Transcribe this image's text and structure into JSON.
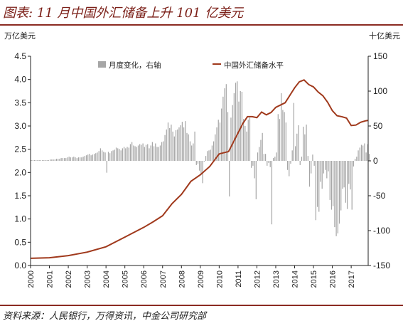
{
  "title": "图表: 11 月中国外汇储备上升 101 亿美元",
  "source": "资料来源：人民银行，万得资讯，中金公司研究部",
  "colors": {
    "accent": "#8b2b22",
    "bar": "#a6a6a6",
    "line": "#a0391c"
  },
  "chart_data": {
    "type": "bar+line",
    "left_axis": {
      "unit": "万亿美元",
      "min": 0.0,
      "max": 4.5,
      "ticks": [
        "0.0",
        "0.5",
        "1.0",
        "1.5",
        "2.0",
        "2.5",
        "3.0",
        "3.5",
        "4.0",
        "4.5"
      ]
    },
    "right_axis": {
      "unit": "十亿美元",
      "min": -150,
      "max": 150,
      "ticks": [
        "-150",
        "-100",
        "-50",
        "0",
        "50",
        "100",
        "150"
      ]
    },
    "x_ticks": [
      "2000",
      "2001",
      "2002",
      "2003",
      "2004",
      "2005",
      "2006",
      "2007",
      "2008",
      "2009",
      "2010",
      "2011",
      "2012",
      "2013",
      "2014",
      "2015",
      "2016",
      "2017"
    ],
    "legend": [
      "月度变化，右轴",
      "中国外汇储备水平"
    ],
    "series": [
      {
        "name": "中国外汇储备水平",
        "axis": "left",
        "kind": "line",
        "points": [
          [
            2000.0,
            0.155
          ],
          [
            2001.0,
            0.166
          ],
          [
            2002.0,
            0.213
          ],
          [
            2003.0,
            0.288
          ],
          [
            2004.0,
            0.403
          ],
          [
            2005.0,
            0.61
          ],
          [
            2006.0,
            0.82
          ],
          [
            2006.5,
            0.94
          ],
          [
            2007.0,
            1.07
          ],
          [
            2007.5,
            1.33
          ],
          [
            2008.0,
            1.53
          ],
          [
            2008.5,
            1.81
          ],
          [
            2009.0,
            1.95
          ],
          [
            2009.5,
            2.13
          ],
          [
            2010.0,
            2.4
          ],
          [
            2010.5,
            2.45
          ],
          [
            2011.0,
            2.85
          ],
          [
            2011.25,
            3.05
          ],
          [
            2011.5,
            3.2
          ],
          [
            2011.75,
            3.2
          ],
          [
            2012.0,
            3.18
          ],
          [
            2012.25,
            3.3
          ],
          [
            2012.5,
            3.24
          ],
          [
            2012.75,
            3.29
          ],
          [
            2013.0,
            3.4
          ],
          [
            2013.5,
            3.5
          ],
          [
            2013.75,
            3.66
          ],
          [
            2014.0,
            3.82
          ],
          [
            2014.25,
            3.95
          ],
          [
            2014.5,
            3.99
          ],
          [
            2014.75,
            3.89
          ],
          [
            2015.0,
            3.84
          ],
          [
            2015.25,
            3.73
          ],
          [
            2015.5,
            3.65
          ],
          [
            2015.75,
            3.51
          ],
          [
            2016.0,
            3.33
          ],
          [
            2016.25,
            3.22
          ],
          [
            2016.5,
            3.2
          ],
          [
            2016.75,
            3.17
          ],
          [
            2017.0,
            3.01
          ],
          [
            2017.25,
            3.02
          ],
          [
            2017.5,
            3.08
          ],
          [
            2017.75,
            3.11
          ],
          [
            2017.9,
            3.12
          ]
        ]
      },
      {
        "name": "月度变化，右轴",
        "axis": "right",
        "kind": "bar",
        "start": 2000.0,
        "step": 0.08333,
        "values": [
          1,
          1,
          1,
          1,
          1,
          1,
          1,
          1,
          1,
          1,
          1,
          1,
          2,
          2,
          2,
          2,
          3,
          3,
          3,
          4,
          4,
          4,
          4,
          5,
          6,
          5,
          5,
          6,
          5,
          4,
          5,
          5,
          5,
          6,
          7,
          8,
          9,
          10,
          8,
          9,
          10,
          11,
          12,
          14,
          18,
          15,
          13,
          12,
          -17,
          13,
          11,
          14,
          15,
          16,
          19,
          18,
          17,
          15,
          18,
          20,
          18,
          20,
          19,
          24,
          27,
          22,
          21,
          20,
          22,
          24,
          23,
          25,
          20,
          23,
          24,
          18,
          22,
          27,
          21,
          25,
          20,
          20,
          22,
          27,
          28,
          37,
          45,
          55,
          47,
          52,
          42,
          35,
          44,
          45,
          48,
          51,
          56,
          48,
          57,
          40,
          38,
          28,
          22,
          25,
          42,
          -6,
          -4,
          -14,
          -20,
          -32,
          -1,
          7,
          14,
          15,
          16,
          22,
          28,
          38,
          48,
          59,
          55,
          75,
          92,
          104,
          110,
          70,
          -51,
          62,
          80,
          97,
          112,
          114,
          85,
          100,
          99,
          60,
          50,
          42,
          59,
          62,
          -10,
          -7,
          -25,
          -55,
          12,
          20,
          30,
          40,
          10,
          10,
          -7,
          -3,
          -9,
          -91,
          4,
          6,
          12,
          67,
          60,
          97,
          73,
          70,
          55,
          -13,
          -22,
          -4,
          15,
          83,
          21,
          39,
          51,
          -6,
          6,
          49,
          38,
          52,
          7,
          -37,
          -18,
          9,
          -7,
          -85,
          -66,
          -73,
          -30,
          -40,
          -18,
          -13,
          -25,
          -15,
          -56,
          -70,
          -65,
          -95,
          -108,
          -104,
          -90,
          -71,
          -40,
          -38,
          -60,
          -69,
          -33,
          -41,
          -70,
          -8,
          3,
          6,
          15,
          19,
          23,
          22,
          25,
          12,
          24,
          10
        ]
      }
    ]
  }
}
